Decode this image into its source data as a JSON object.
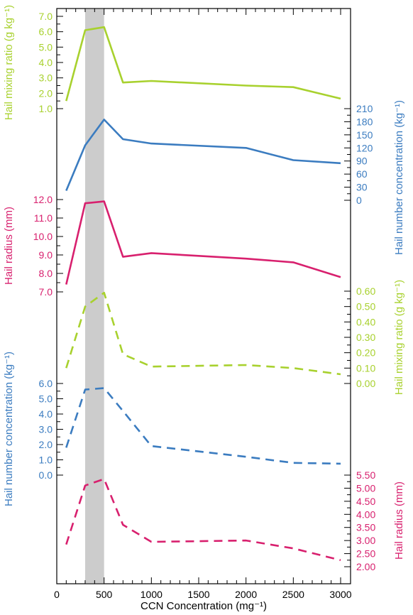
{
  "chart_data": {
    "type": "line",
    "title": "",
    "xlabel": "CCN Concentration (mg⁻¹)",
    "xlim": [
      0,
      3100
    ],
    "x_ticks": [
      "0",
      "500",
      "1000",
      "1500",
      "2000",
      "2500",
      "3000"
    ],
    "x": [
      100,
      300,
      500,
      700,
      1000,
      2000,
      2500,
      3000
    ],
    "shaded_band": [
      300,
      500
    ],
    "colors": {
      "green": "#a8d12e",
      "blue": "#3b7cc0",
      "magenta": "#d8206e",
      "band": "#cccccc"
    },
    "panels": [
      {
        "name": "mixing_ratio_solid",
        "series": [
          {
            "values": [
              1.5,
              6.1,
              6.3,
              2.7,
              2.8,
              2.5,
              2.4,
              1.65
            ],
            "style": "solid",
            "color": "green"
          }
        ],
        "axis": {
          "side": "left",
          "label": "Hail mixing ratio (g kg⁻¹)",
          "color": "green",
          "ticks": [
            "1.0",
            "2.0",
            "3.0",
            "4.0",
            "5.0",
            "6.0",
            "7.0"
          ],
          "tick_values": [
            1,
            2,
            3,
            4,
            5,
            6,
            7
          ]
        }
      },
      {
        "name": "number_conc_solid",
        "series": [
          {
            "values": [
              22,
              126,
              185,
              140,
              130,
              120,
              92,
              85
            ],
            "style": "solid",
            "color": "blue"
          }
        ],
        "axis": {
          "side": "right",
          "label": "Hail number concentration (kg⁻¹)",
          "color": "blue",
          "ticks": [
            "0",
            "30",
            "60",
            "90",
            "120",
            "150",
            "180",
            "210"
          ],
          "tick_values": [
            0,
            30,
            60,
            90,
            120,
            150,
            180,
            210
          ]
        }
      },
      {
        "name": "radius_solid",
        "series": [
          {
            "values": [
              7.4,
              11.8,
              11.9,
              8.9,
              9.1,
              8.8,
              8.6,
              7.8
            ],
            "style": "solid",
            "color": "magenta"
          }
        ],
        "axis": {
          "side": "left",
          "label": "Hail radius (mm)",
          "color": "magenta",
          "ticks": [
            "7.0",
            "8.0",
            "9.0",
            "10.0",
            "11.0",
            "12.0"
          ],
          "tick_values": [
            7,
            8,
            9,
            10,
            11,
            12
          ]
        }
      },
      {
        "name": "mixing_ratio_dashed",
        "series": [
          {
            "values": [
              0.1,
              0.5,
              0.59,
              0.19,
              0.11,
              0.12,
              0.1,
              0.06
            ],
            "style": "dashed",
            "color": "green"
          }
        ],
        "axis": {
          "side": "right",
          "label": "Hail mixing ratio (g kg⁻¹)",
          "color": "green",
          "ticks": [
            "0.00",
            "0.10",
            "0.20",
            "0.30",
            "0.40",
            "0.50",
            "0.60"
          ],
          "tick_values": [
            0,
            0.1,
            0.2,
            0.3,
            0.4,
            0.5,
            0.6
          ]
        }
      },
      {
        "name": "number_conc_dashed",
        "series": [
          {
            "values": [
              1.8,
              5.6,
              5.7,
              4.2,
              1.9,
              1.2,
              0.8,
              0.75
            ],
            "style": "dashed",
            "color": "blue"
          }
        ],
        "axis": {
          "side": "left",
          "label": "Hail number concentration (kg⁻¹)",
          "color": "blue",
          "ticks": [
            "0.0",
            "1.0",
            "2.0",
            "3.0",
            "4.0",
            "5.0",
            "6.0"
          ],
          "tick_values": [
            0,
            1,
            2,
            3,
            4,
            5,
            6
          ]
        }
      },
      {
        "name": "radius_dashed",
        "series": [
          {
            "values": [
              2.85,
              5.1,
              5.35,
              3.6,
              2.95,
              3.0,
              2.7,
              2.25
            ],
            "style": "dashed",
            "color": "magenta"
          }
        ],
        "axis": {
          "side": "right",
          "label": "Hail radius (mm)",
          "color": "magenta",
          "ticks": [
            "2.00",
            "2.50",
            "3.00",
            "3.50",
            "4.00",
            "4.50",
            "5.00",
            "5.50"
          ],
          "tick_values": [
            2,
            2.5,
            3,
            3.5,
            4,
            4.5,
            5,
            5.5
          ]
        }
      }
    ]
  }
}
